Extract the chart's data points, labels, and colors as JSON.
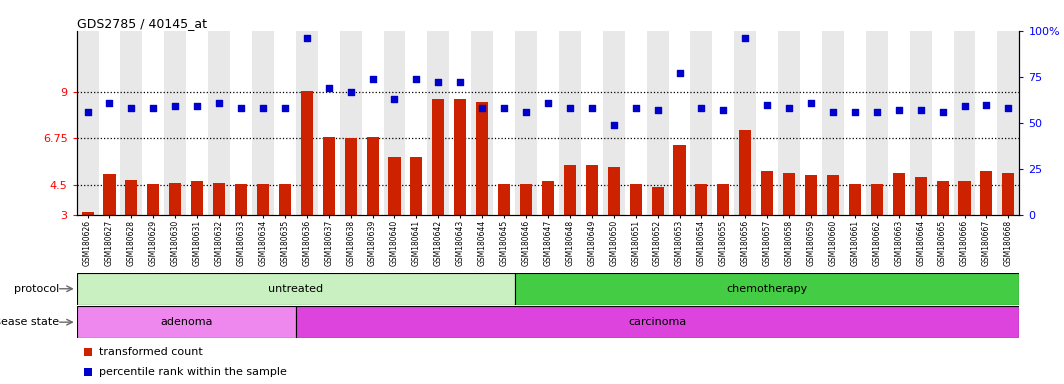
{
  "title": "GDS2785 / 40145_at",
  "samples": [
    "GSM180626",
    "GSM180627",
    "GSM180628",
    "GSM180629",
    "GSM180630",
    "GSM180631",
    "GSM180632",
    "GSM180633",
    "GSM180634",
    "GSM180635",
    "GSM180636",
    "GSM180637",
    "GSM180638",
    "GSM180639",
    "GSM180640",
    "GSM180641",
    "GSM180642",
    "GSM180643",
    "GSM180644",
    "GSM180645",
    "GSM180646",
    "GSM180647",
    "GSM180648",
    "GSM180649",
    "GSM180650",
    "GSM180651",
    "GSM180652",
    "GSM180653",
    "GSM180654",
    "GSM180655",
    "GSM180656",
    "GSM180657",
    "GSM180658",
    "GSM180659",
    "GSM180660",
    "GSM180661",
    "GSM180662",
    "GSM180663",
    "GSM180664",
    "GSM180665",
    "GSM180666",
    "GSM180667",
    "GSM180668"
  ],
  "bar_values": [
    3.15,
    5.0,
    4.75,
    4.55,
    4.6,
    4.7,
    4.6,
    4.55,
    4.55,
    4.55,
    9.05,
    6.8,
    6.75,
    6.8,
    5.85,
    5.85,
    8.65,
    8.65,
    8.55,
    4.55,
    4.55,
    4.7,
    5.45,
    5.45,
    5.35,
    4.55,
    4.4,
    6.45,
    4.55,
    4.55,
    7.15,
    5.15,
    5.05,
    4.95,
    4.95,
    4.55,
    4.55,
    5.05,
    4.85,
    4.7,
    4.7,
    5.15,
    5.05
  ],
  "dot_pct": [
    56,
    61,
    58,
    58,
    59,
    59,
    61,
    58,
    58,
    58,
    96,
    69,
    67,
    74,
    63,
    74,
    72,
    72,
    58,
    58,
    56,
    61,
    58,
    58,
    49,
    58,
    57,
    77,
    58,
    57,
    96,
    60,
    58,
    61,
    56,
    56,
    56,
    57,
    57,
    56,
    59,
    60,
    58
  ],
  "ylim_left": [
    3,
    12
  ],
  "yticks_left": [
    3,
    4.5,
    6.75,
    9
  ],
  "ylim_right": [
    0,
    100
  ],
  "yticks_right": [
    0,
    25,
    50,
    75,
    100
  ],
  "ytick_labels_right": [
    "0",
    "25",
    "50",
    "75",
    "100%"
  ],
  "hlines": [
    4.5,
    6.75,
    9
  ],
  "protocol_labels": [
    "untreated",
    "chemotherapy"
  ],
  "protocol_n": [
    20,
    23
  ],
  "protocol_colors": [
    "#c8f0c0",
    "#44cc44"
  ],
  "disease_labels": [
    "adenoma",
    "carcinoma"
  ],
  "disease_n": [
    10,
    33
  ],
  "disease_colors_hex": [
    "#ee80ee",
    "#dd44dd"
  ],
  "bar_color": "#cc2200",
  "dot_color": "#0000cc",
  "legend_items": [
    "transformed count",
    "percentile rank within the sample"
  ],
  "bg_even": "#e8e8e8",
  "bg_odd": "#ffffff"
}
